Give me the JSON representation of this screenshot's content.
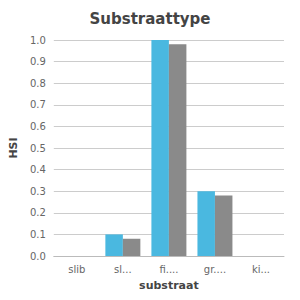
{
  "chart_data": {
    "type": "bar",
    "title": "Substraattype",
    "xlabel": "substraat",
    "ylabel": "HSI",
    "categories": [
      "slib",
      "sl...",
      "fi....",
      "gr....",
      "ki..."
    ],
    "series": [
      {
        "color": "#4ab8e0",
        "values": [
          0.0,
          0.1,
          1.0,
          0.3,
          0.0
        ]
      },
      {
        "color": "#8a8a8a",
        "values": [
          0.0,
          0.08,
          0.98,
          0.28,
          0.0
        ]
      }
    ],
    "ylim": [
      0.0,
      1.0
    ],
    "yticks": [
      {
        "value": 0.0,
        "label": "0.0"
      },
      0.1,
      0.2,
      0.3,
      0.4,
      0.5,
      0.6,
      0.7,
      0.8,
      0.9,
      {
        "value": 1.0,
        "label": "1.0"
      }
    ],
    "grid": true
  }
}
